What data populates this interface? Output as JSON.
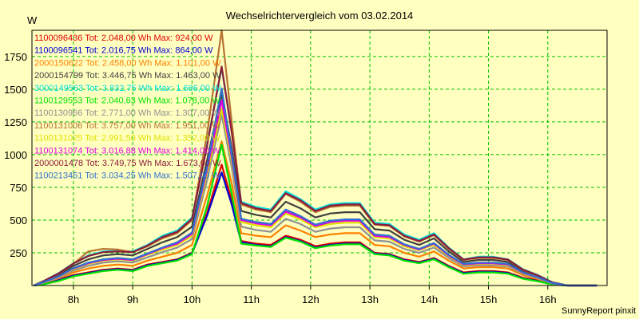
{
  "chart_data": {
    "type": "line",
    "title": "Wechselrichtervergleich vom 03.02.2014",
    "ylabel": "W",
    "xlabel": "",
    "footer": "SunnyReport pinxit",
    "ylim": [
      0,
      1950
    ],
    "xlim": [
      7.3,
      17.0
    ],
    "yticks": [
      250,
      500,
      750,
      1000,
      1250,
      1500,
      1750
    ],
    "xticks": [
      {
        "value": 8,
        "label": "8h"
      },
      {
        "value": 9,
        "label": "9h"
      },
      {
        "value": 10,
        "label": "10h"
      },
      {
        "value": 11,
        "label": "11h"
      },
      {
        "value": 12,
        "label": "12h"
      },
      {
        "value": 13,
        "label": "13h"
      },
      {
        "value": 14,
        "label": "14h"
      },
      {
        "value": 15,
        "label": "15h"
      },
      {
        "value": 16,
        "label": "16h"
      }
    ],
    "grid": true,
    "x": [
      7.33,
      7.5,
      7.75,
      8.0,
      8.25,
      8.5,
      8.75,
      9.0,
      9.25,
      9.5,
      9.75,
      10.0,
      10.25,
      10.5,
      10.67,
      10.83,
      11.08,
      11.33,
      11.58,
      11.83,
      12.08,
      12.33,
      12.58,
      12.83,
      13.08,
      13.33,
      13.58,
      13.83,
      14.08,
      14.33,
      14.58,
      14.83,
      15.08,
      15.33,
      15.58,
      15.83,
      16.08,
      16.33,
      16.58,
      16.83
    ],
    "series": [
      {
        "name": "1100096436",
        "tot": "2.048,00",
        "max": "924,00",
        "color": "#e00000",
        "values": [
          0,
          15,
          45,
          80,
          100,
          120,
          130,
          120,
          160,
          180,
          200,
          250,
          550,
          924,
          650,
          340,
          320,
          310,
          380,
          350,
          300,
          320,
          330,
          330,
          250,
          240,
          200,
          180,
          210,
          150,
          100,
          110,
          110,
          100,
          60,
          40,
          10,
          0,
          0,
          0
        ]
      },
      {
        "name": "1100096541",
        "tot": "2.016,75",
        "max": "864,00",
        "color": "#0000d0",
        "values": [
          0,
          12,
          40,
          75,
          95,
          115,
          125,
          115,
          155,
          175,
          195,
          245,
          530,
          864,
          620,
          330,
          310,
          300,
          370,
          340,
          290,
          310,
          320,
          320,
          245,
          235,
          195,
          175,
          205,
          145,
          95,
          105,
          105,
          95,
          55,
          35,
          8,
          0,
          0,
          0
        ]
      },
      {
        "name": "2000150622",
        "tot": "2.458,00",
        "max": "1.101,00",
        "color": "#ff8000",
        "values": [
          0,
          20,
          55,
          100,
          130,
          150,
          160,
          150,
          190,
          220,
          250,
          310,
          680,
          1101,
          780,
          400,
          380,
          370,
          460,
          420,
          370,
          390,
          400,
          400,
          310,
          300,
          250,
          220,
          260,
          190,
          130,
          140,
          140,
          130,
          80,
          50,
          15,
          0,
          0,
          0
        ]
      },
      {
        "name": "2000154799",
        "tot": "3.446,75",
        "max": "1.463,00",
        "color": "#404040",
        "values": [
          0,
          30,
          80,
          150,
          200,
          230,
          240,
          230,
          280,
          330,
          370,
          450,
          950,
          1463,
          1050,
          570,
          540,
          520,
          640,
          590,
          520,
          550,
          560,
          560,
          430,
          420,
          350,
          310,
          360,
          260,
          180,
          195,
          195,
          180,
          110,
          70,
          20,
          0,
          0,
          0
        ]
      },
      {
        "name": "3000149563",
        "tot": "3.832,75",
        "max": "1.666,00",
        "color": "#00e0e0",
        "values": [
          0,
          35,
          95,
          170,
          230,
          260,
          265,
          260,
          310,
          380,
          420,
          520,
          1070,
          1666,
          1180,
          640,
          600,
          580,
          720,
          660,
          580,
          620,
          630,
          630,
          480,
          470,
          390,
          350,
          400,
          290,
          200,
          220,
          220,
          200,
          125,
          80,
          25,
          0,
          0,
          0
        ]
      },
      {
        "name": "1100129553",
        "tot": "2.040,63",
        "max": "1.078,00",
        "color": "#00e000",
        "values": [
          0,
          10,
          35,
          70,
          90,
          110,
          120,
          110,
          150,
          170,
          190,
          240,
          600,
          1078,
          700,
          320,
          305,
          295,
          365,
          335,
          285,
          305,
          315,
          315,
          240,
          230,
          190,
          170,
          200,
          140,
          90,
          100,
          100,
          90,
          52,
          32,
          8,
          0,
          0,
          0
        ]
      },
      {
        "name": "1100130966",
        "tot": "2.771,00",
        "max": "1.307,00",
        "color": "#909090",
        "values": [
          0,
          22,
          60,
          115,
          150,
          175,
          185,
          175,
          215,
          255,
          290,
          355,
          800,
          1307,
          900,
          450,
          425,
          410,
          510,
          470,
          410,
          435,
          445,
          445,
          345,
          335,
          280,
          250,
          290,
          210,
          145,
          155,
          155,
          145,
          90,
          55,
          15,
          0,
          0,
          0
        ]
      },
      {
        "name": "1100131006",
        "tot": "3.757,00",
        "max": "1.951,00",
        "color": "#b87333",
        "values": [
          0,
          33,
          90,
          165,
          260,
          280,
          275,
          255,
          300,
          360,
          400,
          500,
          1150,
          1951,
          1250,
          620,
          580,
          560,
          700,
          640,
          560,
          600,
          610,
          610,
          465,
          455,
          375,
          335,
          385,
          280,
          195,
          210,
          210,
          195,
          120,
          75,
          22,
          0,
          0,
          0
        ]
      },
      {
        "name": "1100131025",
        "tot": "2.991,50",
        "max": "1.352,00",
        "color": "#e0e000",
        "values": [
          0,
          25,
          65,
          125,
          165,
          190,
          200,
          190,
          235,
          275,
          310,
          380,
          850,
          1352,
          950,
          485,
          460,
          445,
          550,
          505,
          445,
          470,
          480,
          480,
          370,
          360,
          300,
          270,
          310,
          225,
          155,
          165,
          165,
          155,
          95,
          60,
          18,
          0,
          0,
          0
        ]
      },
      {
        "name": "1100131074",
        "tot": "3.016,88",
        "max": "1.414,00",
        "color": "#e000e0",
        "values": [
          0,
          26,
          68,
          130,
          170,
          195,
          205,
          195,
          240,
          285,
          320,
          395,
          880,
          1414,
          980,
          500,
          475,
          460,
          565,
          520,
          455,
          485,
          495,
          495,
          380,
          370,
          310,
          275,
          320,
          230,
          160,
          170,
          170,
          160,
          98,
          62,
          18,
          0,
          0,
          0
        ]
      },
      {
        "name": "2000001478",
        "tot": "3.749,75",
        "max": "1.673,00",
        "color": "#8b1a3a",
        "values": [
          0,
          34,
          92,
          168,
          225,
          255,
          260,
          255,
          305,
          370,
          410,
          510,
          1060,
          1673,
          1170,
          630,
          590,
          570,
          705,
          650,
          570,
          610,
          620,
          620,
          470,
          460,
          380,
          340,
          390,
          285,
          198,
          215,
          215,
          198,
          122,
          78,
          24,
          0,
          0,
          0
        ]
      },
      {
        "name": "1100213451",
        "tot": "3.034,25",
        "max": "1.507,00",
        "color": "#3070d0",
        "values": [
          0,
          27,
          70,
          132,
          175,
          200,
          210,
          200,
          245,
          290,
          330,
          405,
          900,
          1507,
          1000,
          510,
          485,
          470,
          580,
          530,
          465,
          495,
          505,
          505,
          390,
          380,
          315,
          280,
          325,
          235,
          165,
          175,
          175,
          165,
          100,
          63,
          19,
          0,
          0,
          0
        ]
      }
    ]
  }
}
